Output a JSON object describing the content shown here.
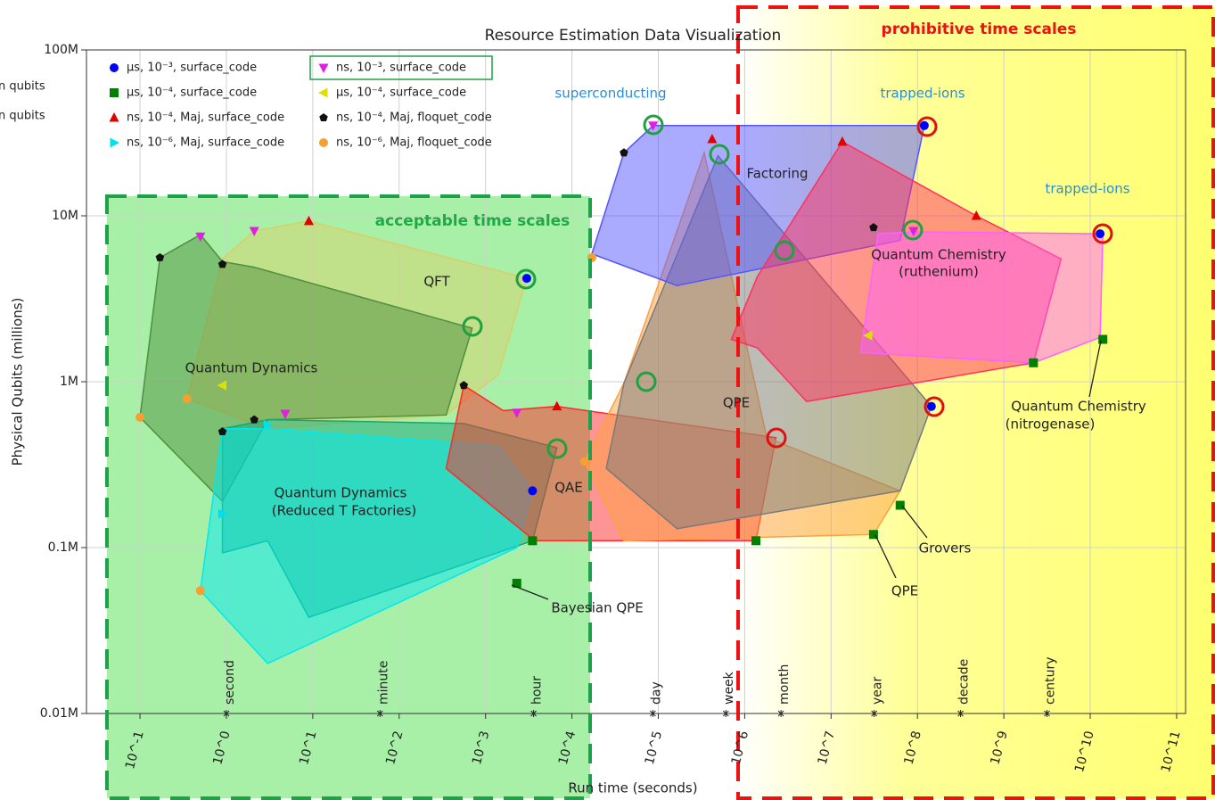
{
  "chart_data": {
    "type": "scatter",
    "title": "Resource Estimation Data Visualization",
    "x_label": "Run time (seconds)",
    "y_label": "Physical Qubits (millions)",
    "xscale": "log",
    "yscale": "log",
    "xlim": [
      0.024,
      127000000000
    ],
    "ylim": [
      0.01,
      100
    ],
    "xticks": [
      {
        "value": 0.1,
        "label": "10^-1"
      },
      {
        "value": 1,
        "label": "10^0"
      },
      {
        "value": 10,
        "label": "10^1"
      },
      {
        "value": 100,
        "label": "10^2"
      },
      {
        "value": 1000,
        "label": "10^3"
      },
      {
        "value": 10000,
        "label": "10^4"
      },
      {
        "value": 100000,
        "label": "10^5"
      },
      {
        "value": 1000000,
        "label": "10^6"
      },
      {
        "value": 10000000,
        "label": "10^7"
      },
      {
        "value": 100000000,
        "label": "10^8"
      },
      {
        "value": 1000000000,
        "label": "10^9"
      },
      {
        "value": 10000000000,
        "label": "10^10"
      },
      {
        "value": 100000000000,
        "label": "10^11"
      }
    ],
    "yticks": [
      {
        "value": 0.01,
        "label": "0.01M"
      },
      {
        "value": 0.1,
        "label": "0.1M"
      },
      {
        "value": 1,
        "label": "1M"
      },
      {
        "value": 10,
        "label": "10M"
      },
      {
        "value": 100,
        "label": "100M"
      }
    ],
    "grid": true,
    "legend": "upper left",
    "time_markers": {
      "labels": [
        "second",
        "minute",
        "hour",
        "day",
        "week",
        "month",
        "year",
        "decade",
        "century"
      ],
      "x": [
        1,
        60,
        3600,
        86400,
        604800,
        2629800,
        31557600,
        315576000,
        3155760000
      ]
    },
    "regions": [
      {
        "color": "#d8cf6a",
        "x": [
          0.35,
          0.9,
          2.1,
          9,
          3000,
          1400,
          350,
          3
        ],
        "y": [
          0.79,
          5.5,
          8.1,
          9.3,
          4.2,
          1.1,
          0.63,
          0.52
        ]
      },
      {
        "color": "#4f8f3f",
        "x": [
          0.1,
          0.17,
          0.5,
          0.9,
          2.1,
          700,
          350,
          3,
          0.9
        ],
        "y": [
          0.61,
          5.6,
          7.7,
          5.3,
          4.9,
          2.1,
          0.63,
          0.59,
          0.19
        ]
      },
      {
        "color": "#14a878",
        "x": [
          0.9,
          3,
          560,
          6700,
          3500,
          9,
          3,
          0.9
        ],
        "y": [
          0.52,
          0.59,
          0.56,
          0.4,
          0.11,
          0.038,
          0.11,
          0.093
        ]
      },
      {
        "color": "#00e8f0",
        "x": [
          0.5,
          0.9,
          3,
          1400,
          3500,
          2300,
          3
        ],
        "y": [
          0.055,
          0.52,
          0.52,
          0.41,
          0.22,
          0.1,
          0.02
        ]
      },
      {
        "color": "#ff2a2a",
        "x": [
          350,
          560,
          1600,
          6700,
          2300000,
          1350000,
          3700
        ],
        "y": [
          0.3,
          0.95,
          0.67,
          0.71,
          0.46,
          0.11,
          0.11
        ]
      },
      {
        "color": "#ffa040",
        "x": [
          14000,
          40000,
          340000,
          1800000,
          63000000,
          31000000,
          40000
        ],
        "y": [
          0.33,
          0.98,
          24,
          0.46,
          0.22,
          0.12,
          0.11
        ]
      },
      {
        "color": "#7a7a7a",
        "x": [
          40000,
          490000,
          145000000,
          63000000,
          165000,
          25000
        ],
        "y": [
          0.98,
          23,
          0.71,
          0.22,
          0.13,
          0.3
        ]
      },
      {
        "color": "#5555ff",
        "x": [
          17000,
          40000,
          87000,
          120000000,
          63000000,
          165000
        ],
        "y": [
          5.9,
          24,
          35,
          35,
          7.1,
          3.8
        ]
      },
      {
        "color": "#ff3060",
        "x": [
          700000,
          1400000,
          13500000,
          480000000,
          4600000000,
          2200000000,
          5200000,
          1400000
        ],
        "y": [
          1.8,
          4.3,
          28,
          10,
          5.5,
          1.3,
          0.76,
          1.6
        ]
      },
      {
        "color": "#ff60ff",
        "x": [
          22000000,
          35000000,
          90000000,
          14000000000,
          13000000000,
          2200000000
        ],
        "y": [
          1.5,
          7.8,
          8,
          7.8,
          1.85,
          1.3
        ]
      }
    ],
    "series": [
      {
        "name": "μs, 10⁻³, surface_code",
        "color": "#0000ff",
        "marker": "circle",
        "x": [
          3000,
          120000000,
          13000000000,
          145000000,
          3500
        ],
        "y": [
          4.2,
          35,
          7.8,
          0.71,
          0.22
        ]
      },
      {
        "name": "μs, 10⁻⁴, surface_code",
        "color": "#008000",
        "marker": "square",
        "x": [
          2200000000,
          14000000000,
          63000000,
          31000000,
          2300,
          1350000,
          3500
        ],
        "y": [
          1.3,
          1.8,
          0.18,
          0.12,
          0.061,
          0.11,
          0.11
        ]
      },
      {
        "name": "ns, 10⁻⁴, Maj, surface_code",
        "color": "#e00000",
        "marker": "triangle-up",
        "x": [
          9,
          13500000,
          480000000,
          6700,
          420000
        ],
        "y": [
          9.3,
          28,
          10,
          0.71,
          29
        ]
      },
      {
        "name": "ns, 10⁻⁶, Maj, surface_code",
        "color": "#00e0f0",
        "marker": "triangle-right",
        "x": [
          3,
          0.9
        ],
        "y": [
          0.55,
          0.16
        ]
      },
      {
        "name": "ns, 10⁻³, surface_code",
        "color": "#e020e0",
        "marker": "triangle-down",
        "x": [
          0.5,
          2.1,
          87000,
          90000000,
          4.8,
          2300
        ],
        "y": [
          7.5,
          8.1,
          35,
          8.1,
          0.64,
          0.65
        ]
      },
      {
        "name": "μs, 10⁻⁴, surface_code",
        "color": "#e0e000",
        "marker": "triangle-left",
        "x": [
          0.9,
          27000000
        ],
        "y": [
          0.95,
          1.9
        ]
      },
      {
        "name": "ns, 10⁻⁴, Maj, floquet_code",
        "color": "#111111",
        "marker": "pentagon",
        "x": [
          0.17,
          0.9,
          0.9,
          2.1,
          560,
          40000,
          31000000
        ],
        "y": [
          5.6,
          5.1,
          0.5,
          0.59,
          0.95,
          24,
          8.5
        ]
      },
      {
        "name": "ns, 10⁻⁶, Maj, floquet_code",
        "color": "#f5a030",
        "marker": "circle",
        "x": [
          0.1,
          0.35,
          0.5,
          14000,
          17000
        ],
        "y": [
          0.61,
          0.79,
          0.055,
          0.33,
          5.6
        ]
      }
    ],
    "annotations": [
      "acceptable time scales",
      "prohibitive time scales",
      "superconducting",
      "trapped-ions",
      "trapped-ions",
      "QFT",
      "Quantum Dynamics",
      "Quantum Dynamics",
      "(Reduced T Factories)",
      "QAE",
      "Factoring",
      "QPE",
      "Quantum Chemistry",
      "(ruthenium)",
      "Quantum Chemistry",
      "(nitrogenase)",
      "Bayesian QPE",
      "Grovers",
      "QPE",
      "n qubits",
      "n qubits"
    ]
  }
}
